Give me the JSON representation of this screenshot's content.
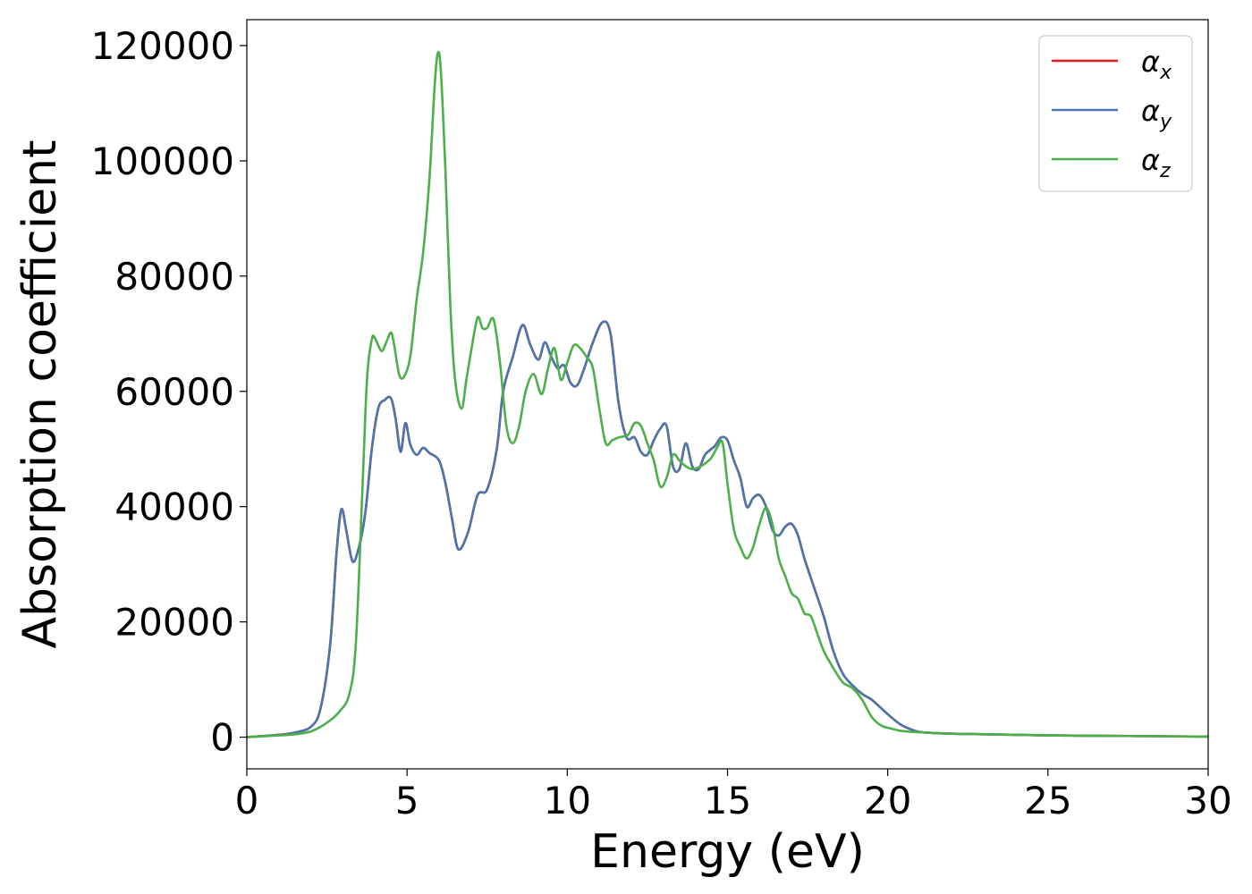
{
  "chart_data": {
    "type": "line",
    "title": "",
    "xlabel": "Energy (eV)",
    "ylabel": "Absorption coefficient",
    "xlim": [
      0,
      30
    ],
    "ylim": [
      -5500,
      124500
    ],
    "xticks": [
      0,
      5,
      10,
      15,
      20,
      25,
      30
    ],
    "yticks": [
      0,
      20000,
      40000,
      60000,
      80000,
      100000,
      120000
    ],
    "grid": false,
    "legend_position": "top-right",
    "series": [
      {
        "name": "αx",
        "name_base": "α",
        "name_sub": "x",
        "color": "#e41a1c",
        "x": [
          0,
          1,
          1.5,
          2,
          2.3,
          2.6,
          2.8,
          2.95,
          3.1,
          3.3,
          3.5,
          3.7,
          3.9,
          4.1,
          4.3,
          4.5,
          4.65,
          4.8,
          4.95,
          5.1,
          5.3,
          5.5,
          5.7,
          6.0,
          6.2,
          6.4,
          6.6,
          6.9,
          7.2,
          7.5,
          7.8,
          8.0,
          8.3,
          8.6,
          8.85,
          9.1,
          9.3,
          9.5,
          9.7,
          9.9,
          10.1,
          10.3,
          10.5,
          10.8,
          11.1,
          11.35,
          11.6,
          11.85,
          12.1,
          12.3,
          12.5,
          12.7,
          12.9,
          13.1,
          13.3,
          13.5,
          13.7,
          13.9,
          14.1,
          14.3,
          14.6,
          14.8,
          15.0,
          15.2,
          15.4,
          15.6,
          15.8,
          16.0,
          16.2,
          16.4,
          16.6,
          16.8,
          17.0,
          17.2,
          17.4,
          17.7,
          18.0,
          18.3,
          18.6,
          18.9,
          19.2,
          19.5,
          19.8,
          20.1,
          20.4,
          20.7,
          21.0,
          21.5,
          22.0,
          23.0,
          25.0,
          27.5,
          30.0
        ],
        "y": [
          0,
          400,
          800,
          1800,
          5000,
          16000,
          32000,
          39500,
          36000,
          30500,
          33000,
          39000,
          50000,
          57000,
          58500,
          58800,
          55000,
          49500,
          54500,
          50800,
          49000,
          50200,
          49300,
          48000,
          44000,
          38000,
          32600,
          35500,
          42000,
          43000,
          50000,
          60000,
          66000,
          71500,
          68000,
          65500,
          68500,
          66000,
          64000,
          64500,
          61500,
          61000,
          63500,
          68500,
          72000,
          70000,
          58000,
          52000,
          52000,
          49500,
          49000,
          51500,
          53500,
          54000,
          47000,
          46500,
          51000,
          47000,
          46500,
          49000,
          50500,
          52000,
          51500,
          48000,
          45000,
          40000,
          41500,
          42000,
          40000,
          36000,
          35000,
          36500,
          37000,
          35000,
          31000,
          26000,
          21000,
          15000,
          11000,
          9000,
          7500,
          6500,
          5000,
          3500,
          2200,
          1400,
          900,
          700,
          600,
          500,
          300,
          200,
          100
        ]
      },
      {
        "name": "αy",
        "name_base": "α",
        "name_sub": "y",
        "color": "#4a76ab",
        "x": [
          0,
          1,
          1.5,
          2,
          2.3,
          2.6,
          2.8,
          2.95,
          3.1,
          3.3,
          3.5,
          3.7,
          3.9,
          4.1,
          4.3,
          4.5,
          4.65,
          4.8,
          4.95,
          5.1,
          5.3,
          5.5,
          5.7,
          6.0,
          6.2,
          6.4,
          6.6,
          6.9,
          7.2,
          7.5,
          7.8,
          8.0,
          8.3,
          8.6,
          8.85,
          9.1,
          9.3,
          9.5,
          9.7,
          9.9,
          10.1,
          10.3,
          10.5,
          10.8,
          11.1,
          11.35,
          11.6,
          11.85,
          12.1,
          12.3,
          12.5,
          12.7,
          12.9,
          13.1,
          13.3,
          13.5,
          13.7,
          13.9,
          14.1,
          14.3,
          14.6,
          14.8,
          15.0,
          15.2,
          15.4,
          15.6,
          15.8,
          16.0,
          16.2,
          16.4,
          16.6,
          16.8,
          17.0,
          17.2,
          17.4,
          17.7,
          18.0,
          18.3,
          18.6,
          18.9,
          19.2,
          19.5,
          19.8,
          20.1,
          20.4,
          20.7,
          21.0,
          21.5,
          22.0,
          23.0,
          25.0,
          27.5,
          30.0
        ],
        "y": [
          0,
          400,
          800,
          1800,
          5000,
          16000,
          32000,
          39500,
          36000,
          30500,
          33000,
          39000,
          50000,
          57000,
          58500,
          58800,
          55000,
          49500,
          54500,
          50800,
          49000,
          50200,
          49300,
          48000,
          44000,
          38000,
          32600,
          35500,
          42000,
          43000,
          50000,
          60000,
          66000,
          71500,
          68000,
          65500,
          68500,
          66000,
          64000,
          64500,
          61500,
          61000,
          63500,
          68500,
          72000,
          70000,
          58000,
          52000,
          52000,
          49500,
          49000,
          51500,
          53500,
          54000,
          47000,
          46500,
          51000,
          47000,
          46500,
          49000,
          50500,
          52000,
          51500,
          48000,
          45000,
          40000,
          41500,
          42000,
          40000,
          36000,
          35000,
          36500,
          37000,
          35000,
          31000,
          26000,
          21000,
          15000,
          11000,
          9000,
          7500,
          6500,
          5000,
          3500,
          2200,
          1400,
          900,
          700,
          600,
          500,
          300,
          200,
          100
        ]
      },
      {
        "name": "αz",
        "name_base": "α",
        "name_sub": "z",
        "color": "#4daf4a",
        "x": [
          0,
          1,
          1.5,
          2,
          2.5,
          2.9,
          3.2,
          3.4,
          3.6,
          3.75,
          3.9,
          4.0,
          4.2,
          4.35,
          4.5,
          4.6,
          4.75,
          4.9,
          5.1,
          5.3,
          5.5,
          5.7,
          5.85,
          5.95,
          6.05,
          6.2,
          6.35,
          6.5,
          6.7,
          6.85,
          7.0,
          7.2,
          7.35,
          7.5,
          7.7,
          7.9,
          8.1,
          8.3,
          8.5,
          8.7,
          8.95,
          9.2,
          9.4,
          9.6,
          9.8,
          10.0,
          10.2,
          10.4,
          10.6,
          10.8,
          11.0,
          11.2,
          11.4,
          11.6,
          11.9,
          12.1,
          12.3,
          12.5,
          12.7,
          12.9,
          13.1,
          13.3,
          13.5,
          13.7,
          13.9,
          14.1,
          14.3,
          14.5,
          14.7,
          14.85,
          15.0,
          15.2,
          15.4,
          15.6,
          15.8,
          16.0,
          16.2,
          16.4,
          16.6,
          16.8,
          17.0,
          17.2,
          17.4,
          17.6,
          17.8,
          18.0,
          18.3,
          18.6,
          18.9,
          19.2,
          19.5,
          19.8,
          20.1,
          20.4,
          20.8,
          21.2,
          22.0,
          23.0,
          25.0,
          27.5,
          30.0
        ],
        "y": [
          0,
          300,
          500,
          1000,
          2500,
          4500,
          7500,
          16000,
          42000,
          62000,
          69000,
          69200,
          67000,
          68500,
          70200,
          68000,
          63000,
          62500,
          66000,
          76000,
          84000,
          97000,
          112000,
          118500,
          116000,
          98000,
          75000,
          62000,
          57000,
          62000,
          67000,
          72800,
          71000,
          71000,
          72500,
          65000,
          54000,
          51000,
          54000,
          60000,
          63000,
          59500,
          64000,
          67500,
          62000,
          65000,
          68000,
          67500,
          66000,
          64000,
          57000,
          51000,
          51500,
          52000,
          52500,
          54500,
          54000,
          51000,
          48000,
          43500,
          45000,
          49000,
          48000,
          47000,
          46500,
          46800,
          47500,
          48500,
          50500,
          51000,
          44000,
          36000,
          33000,
          31000,
          33000,
          37000,
          39800,
          37000,
          31000,
          28000,
          25000,
          24000,
          21500,
          21000,
          18000,
          15000,
          12000,
          9500,
          8500,
          6500,
          3500,
          2000,
          1500,
          1100,
          900,
          800,
          600,
          500,
          300,
          200,
          100
        ]
      }
    ]
  }
}
